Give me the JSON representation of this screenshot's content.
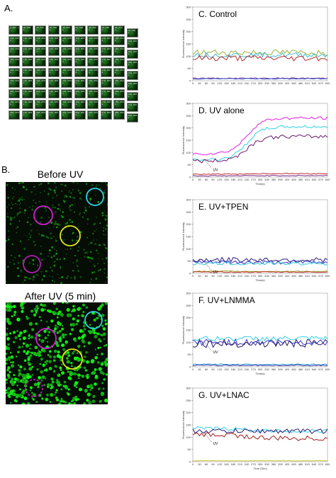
{
  "panel_a": {
    "letter": "A.",
    "timestamps": [
      "0.000 s",
      "10.000 s",
      "20.000 s",
      "30.000 s",
      "40.000 s",
      "50.000 s",
      "60.000 s",
      "70.000 s",
      "80.000 s",
      "90.000 s",
      "100.000 s",
      "110.000 s",
      "120.000 s",
      "130.000 s",
      "140.000 s",
      "150.000 s",
      "160.000 s",
      "170.000 s",
      "180.000 s",
      "190.000 s",
      "200.000 s",
      "210.000 s",
      "220.000 s",
      "230.000 s",
      "240.000 s",
      "250.000 s",
      "260.000 s",
      "270.000 s",
      "280.000 s",
      "290.000 s",
      "300.000 s",
      "310.000 s",
      "320.000 s",
      "330.000 s",
      "340.000 s",
      "350.000 s",
      "360.000 s",
      "370.000 s",
      "380.000 s",
      "390.000 s",
      "400.000 s",
      "410.000 s",
      "420.000 s",
      "430.000 s",
      "440.000 s",
      "450.000 s",
      "460.000 s",
      "470.000 s",
      "480.000 s",
      "490.000 s",
      "500.000 s",
      "510.000 s",
      "520.000 s",
      "530.000 s",
      "540.000 s",
      "550.000 s",
      "560.000 s",
      "570.000 s",
      "580.000 s",
      "590.000 s",
      "600.000 s",
      "610.000 s",
      "620.000 s",
      "630.000 s",
      "640.000 s",
      "650.000 s",
      "660.000 s",
      "670.000 s",
      "680.000 s",
      "690.000 s",
      "700.000 s",
      "710.000 s",
      "720.000 s",
      "730.000 s",
      "740.000 s",
      "750.000 s",
      "760.000 s",
      "770.000 s",
      "780.000 s",
      "790.000 s",
      "800.000 s",
      "810.000 s",
      "820.000 s",
      "830.000 s",
      "840.000 s",
      "850.000 s",
      "860.000 s",
      "870.000 s",
      "880.000 s",
      "890.000 s"
    ]
  },
  "panel_b": {
    "letter": "B.",
    "before_title": "Before UV",
    "after_title": "After UV (5 min)",
    "roi_colors": {
      "magenta": "#d21ed2",
      "cyan": "#2ad4e6",
      "yellow": "#e6e619",
      "purple": "#b01eb0"
    }
  },
  "chart_data": [
    {
      "type": "line",
      "title": "C. Control",
      "ylabel": "Fluorescence Intensity",
      "xlabel": "",
      "ylim": [
        0,
        300
      ],
      "yticks": [
        0,
        50,
        100,
        150,
        200,
        250,
        300
      ],
      "xticks": [
        0,
        30,
        60,
        90,
        120,
        150,
        180,
        210,
        240,
        270,
        300,
        330,
        360,
        390,
        420,
        450,
        480,
        510,
        540,
        570,
        600
      ],
      "annotation": "",
      "series": [
        {
          "color": "#9bb03a",
          "level": [
            115,
            115
          ],
          "noise": 12
        },
        {
          "color": "#3fbcd6",
          "level": [
            105,
            105
          ],
          "noise": 10
        },
        {
          "color": "#b03030",
          "level": [
            92,
            92
          ],
          "noise": 12
        },
        {
          "color": "#7a2a8a",
          "level": [
            10,
            10
          ],
          "noise": 2
        },
        {
          "color": "#3a5ad0",
          "level": [
            8,
            8
          ],
          "noise": 2
        }
      ]
    },
    {
      "type": "line",
      "title": "D. UV alone",
      "ylabel": "Fluorescence Intensity",
      "xlabel": "Time(s)",
      "ylim": [
        0,
        300
      ],
      "yticks": [
        0,
        50,
        100,
        150,
        200,
        250,
        300
      ],
      "xticks": [
        0,
        30,
        60,
        90,
        120,
        150,
        180,
        210,
        240,
        270,
        300,
        330,
        360,
        390,
        420,
        450,
        480,
        510,
        540,
        570,
        600
      ],
      "annotation": "UV",
      "series": [
        {
          "color": "#e020e0",
          "level": [
            95,
            240
          ],
          "noise": 6
        },
        {
          "color": "#30d0e8",
          "level": [
            70,
            205
          ],
          "noise": 6
        },
        {
          "color": "#6a1a6a",
          "level": [
            65,
            165
          ],
          "noise": 8
        },
        {
          "color": "#c03030",
          "level": [
            12,
            14
          ],
          "noise": 2
        },
        {
          "color": "#7a2a8a",
          "level": [
            5,
            6
          ],
          "noise": 2
        }
      ]
    },
    {
      "type": "line",
      "title": "E. UV+TPEN",
      "ylabel": "Fluorescence Intensity",
      "xlabel": "Time(s)",
      "ylim": [
        0,
        300
      ],
      "yticks": [
        0,
        50,
        100,
        150,
        200,
        250,
        300
      ],
      "xticks": [
        0,
        30,
        60,
        90,
        120,
        150,
        180,
        210,
        240,
        270,
        300,
        330,
        360,
        390,
        420,
        450,
        480,
        510,
        540,
        570,
        600
      ],
      "annotation": "UV",
      "series": [
        {
          "color": "#2a1a7a",
          "level": [
            55,
            55
          ],
          "noise": 10
        },
        {
          "color": "#3030c0",
          "level": [
            45,
            45
          ],
          "noise": 8
        },
        {
          "color": "#30c8d8",
          "level": [
            40,
            40
          ],
          "noise": 6
        },
        {
          "color": "#9a9a20",
          "level": [
            8,
            8
          ],
          "noise": 2
        },
        {
          "color": "#c03030",
          "level": [
            5,
            5
          ],
          "noise": 2
        }
      ]
    },
    {
      "type": "line",
      "title": "F. UV+LNMMA",
      "ylabel": "Fluorescence Intensity",
      "xlabel": "Time(s)",
      "ylim": [
        0,
        300
      ],
      "yticks": [
        0,
        50,
        100,
        150,
        200,
        250,
        300
      ],
      "xticks": [
        0,
        30,
        60,
        90,
        120,
        150,
        180,
        210,
        240,
        270,
        300,
        330,
        360,
        390,
        420,
        450,
        480,
        510,
        540,
        570,
        600
      ],
      "annotation": "UV",
      "series": [
        {
          "color": "#30d0e8",
          "level": [
            115,
            115
          ],
          "noise": 10
        },
        {
          "color": "#3a3acc",
          "level": [
            100,
            100
          ],
          "noise": 14
        },
        {
          "color": "#2a1a6a",
          "level": [
            95,
            95
          ],
          "noise": 16
        },
        {
          "color": "#30a0e0",
          "level": [
            10,
            10
          ],
          "noise": 2
        },
        {
          "color": "#3030a0",
          "level": [
            6,
            6
          ],
          "noise": 2
        }
      ]
    },
    {
      "type": "line",
      "title": "G. UV+LNAC",
      "ylabel": "Fluorescence Intensity",
      "xlabel": "Time (Sec)",
      "ylim": [
        0,
        300
      ],
      "yticks": [
        0,
        50,
        100,
        150,
        200,
        250,
        300
      ],
      "xticks": [
        0,
        30,
        60,
        90,
        120,
        150,
        180,
        210,
        240,
        270,
        300,
        330,
        360,
        390,
        420,
        450,
        480,
        510,
        540,
        570,
        600
      ],
      "annotation": "UV",
      "series": [
        {
          "color": "#30d0e8",
          "level": [
            135,
            125
          ],
          "noise": 8
        },
        {
          "color": "#2a1a7a",
          "level": [
            125,
            125
          ],
          "noise": 10
        },
        {
          "color": "#a02020",
          "level": [
            110,
            95
          ],
          "noise": 10
        },
        {
          "color": "#c8c830",
          "level": [
            4,
            4
          ],
          "noise": 1
        }
      ]
    }
  ]
}
